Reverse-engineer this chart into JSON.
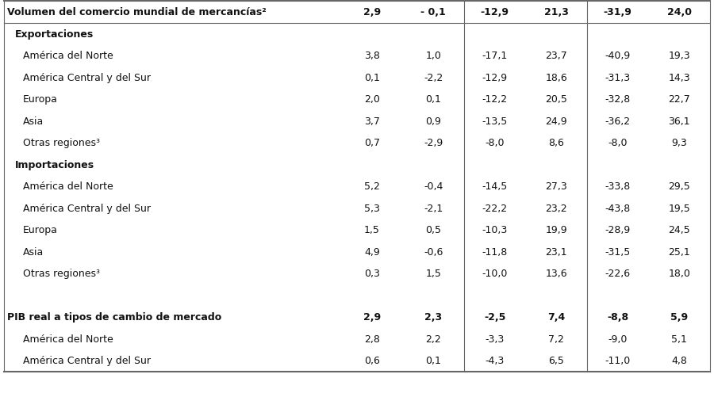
{
  "rows": [
    {
      "label": "Volumen del comercio mundial de mercancías²",
      "level": 0,
      "bold": true,
      "values": [
        "2,9",
        "- 0,1",
        "-12,9",
        "21,3",
        "-31,9",
        "24,0"
      ],
      "spacer_before": false
    },
    {
      "label": "Exportaciones",
      "level": 1,
      "bold": true,
      "values": [
        "",
        "",
        "",
        "",
        "",
        ""
      ],
      "spacer_before": false
    },
    {
      "label": "América del Norte",
      "level": 2,
      "bold": false,
      "values": [
        "3,8",
        "1,0",
        "-17,1",
        "23,7",
        "-40,9",
        "19,3"
      ],
      "spacer_before": false
    },
    {
      "label": "América Central y del Sur",
      "level": 2,
      "bold": false,
      "values": [
        "0,1",
        "-2,2",
        "-12,9",
        "18,6",
        "-31,3",
        "14,3"
      ],
      "spacer_before": false
    },
    {
      "label": "Europa",
      "level": 2,
      "bold": false,
      "values": [
        "2,0",
        "0,1",
        "-12,2",
        "20,5",
        "-32,8",
        "22,7"
      ],
      "spacer_before": false
    },
    {
      "label": "Asia",
      "level": 2,
      "bold": false,
      "values": [
        "3,7",
        "0,9",
        "-13,5",
        "24,9",
        "-36,2",
        "36,1"
      ],
      "spacer_before": false
    },
    {
      "label": "Otras regiones³",
      "level": 2,
      "bold": false,
      "values": [
        "0,7",
        "-2,9",
        "-8,0",
        "8,6",
        "-8,0",
        "9,3"
      ],
      "spacer_before": false
    },
    {
      "label": "Importaciones",
      "level": 1,
      "bold": true,
      "values": [
        "",
        "",
        "",
        "",
        "",
        ""
      ],
      "spacer_before": false
    },
    {
      "label": "América del Norte",
      "level": 2,
      "bold": false,
      "values": [
        "5,2",
        "-0,4",
        "-14,5",
        "27,3",
        "-33,8",
        "29,5"
      ],
      "spacer_before": false
    },
    {
      "label": "América Central y del Sur",
      "level": 2,
      "bold": false,
      "values": [
        "5,3",
        "-2,1",
        "-22,2",
        "23,2",
        "-43,8",
        "19,5"
      ],
      "spacer_before": false
    },
    {
      "label": "Europa",
      "level": 2,
      "bold": false,
      "values": [
        "1,5",
        "0,5",
        "-10,3",
        "19,9",
        "-28,9",
        "24,5"
      ],
      "spacer_before": false
    },
    {
      "label": "Asia",
      "level": 2,
      "bold": false,
      "values": [
        "4,9",
        "-0,6",
        "-11,8",
        "23,1",
        "-31,5",
        "25,1"
      ],
      "spacer_before": false
    },
    {
      "label": "Otras regiones³",
      "level": 2,
      "bold": false,
      "values": [
        "0,3",
        "1,5",
        "-10,0",
        "13,6",
        "-22,6",
        "18,0"
      ],
      "spacer_before": false
    },
    {
      "label": "",
      "level": 0,
      "bold": false,
      "values": [
        "",
        "",
        "",
        "",
        "",
        ""
      ],
      "spacer_before": false,
      "spacer": true
    },
    {
      "label": "PIB real a tipos de cambio de mercado",
      "level": 0,
      "bold": true,
      "values": [
        "2,9",
        "2,3",
        "-2,5",
        "7,4",
        "-8,8",
        "5,9"
      ],
      "spacer_before": false
    },
    {
      "label": "América del Norte",
      "level": 2,
      "bold": false,
      "values": [
        "2,8",
        "2,2",
        "-3,3",
        "7,2",
        "-9,0",
        "5,1"
      ],
      "spacer_before": false
    },
    {
      "label": "América Central y del Sur",
      "level": 2,
      "bold": false,
      "values": [
        "0,6",
        "0,1",
        "-4,3",
        "6,5",
        "-11,0",
        "4,8"
      ],
      "spacer_before": false
    }
  ],
  "background_color": "#ffffff",
  "border_color": "#666666",
  "text_color": "#111111",
  "font_size": 9.0,
  "label_indent_0": 4,
  "label_indent_1": 14,
  "label_indent_2": 24
}
